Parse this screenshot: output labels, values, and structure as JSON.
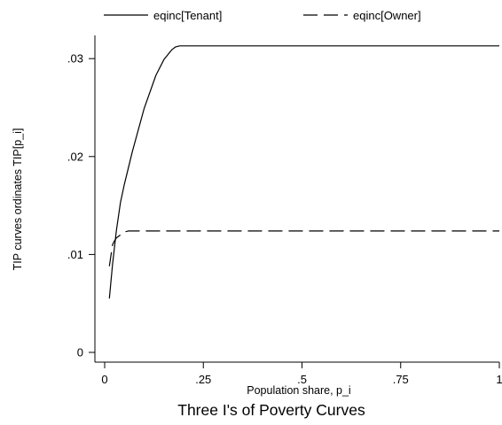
{
  "chart_data": {
    "type": "line",
    "title": "Three I's of Poverty Curves",
    "xlabel": "Population share, p_i",
    "ylabel": "TIP curves ordinates TIP[p_i]",
    "xlim": [
      0,
      1
    ],
    "ylim": [
      0,
      0.0325
    ],
    "x_ticks": [
      0,
      0.25,
      0.5,
      0.75,
      1
    ],
    "x_tick_labels": [
      "0",
      ".25",
      ".5",
      ".75",
      "1"
    ],
    "y_ticks": [
      0,
      0.01,
      0.02,
      0.03
    ],
    "y_tick_labels": [
      "0",
      ".01",
      ".02",
      ".03"
    ],
    "grid": false,
    "legend_position": "top",
    "series": [
      {
        "name": "eqinc[Tenant]",
        "style": "solid",
        "color": "#000000",
        "x": [
          0.012,
          0.02,
          0.03,
          0.04,
          0.05,
          0.07,
          0.1,
          0.13,
          0.15,
          0.17,
          0.18,
          0.19,
          0.2,
          0.22,
          0.25,
          0.5,
          0.75,
          1.0
        ],
        "y": [
          0.0055,
          0.009,
          0.0125,
          0.0153,
          0.0172,
          0.0205,
          0.0249,
          0.0283,
          0.0299,
          0.0309,
          0.0312,
          0.0313,
          0.0313,
          0.0313,
          0.0313,
          0.0313,
          0.0313,
          0.0313
        ]
      },
      {
        "name": "eqinc[Owner]",
        "style": "dashed",
        "color": "#000000",
        "x": [
          0.012,
          0.02,
          0.025,
          0.03,
          0.04,
          0.05,
          0.06,
          0.1,
          0.25,
          0.5,
          0.75,
          1.0
        ],
        "y": [
          0.0088,
          0.011,
          0.0114,
          0.0117,
          0.012,
          0.0123,
          0.0124,
          0.0124,
          0.0124,
          0.0124,
          0.0124,
          0.0124
        ]
      }
    ]
  }
}
